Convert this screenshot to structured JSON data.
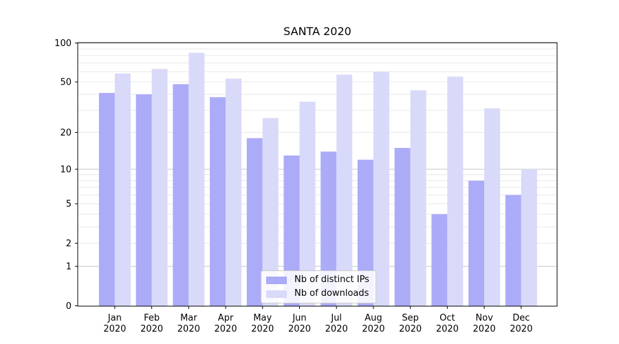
{
  "chart_data": {
    "type": "bar",
    "title": "SANTA 2020",
    "categories": [
      "Jan 2020",
      "Feb 2020",
      "Mar 2020",
      "Apr 2020",
      "May 2020",
      "Jun 2020",
      "Jul 2020",
      "Aug 2020",
      "Sep 2020",
      "Oct 2020",
      "Nov 2020",
      "Dec 2020"
    ],
    "x_months": [
      "Jan",
      "Feb",
      "Mar",
      "Apr",
      "May",
      "Jun",
      "Jul",
      "Aug",
      "Sep",
      "Oct",
      "Nov",
      "Dec"
    ],
    "x_year": "2020",
    "series": [
      {
        "name": "Nb of distinct IPs",
        "color": "#ababf8",
        "values": [
          41,
          40,
          48,
          38,
          18,
          13,
          14,
          12,
          15,
          4,
          8,
          6
        ]
      },
      {
        "name": "Nb of downloads",
        "color": "#d9d9f9",
        "values": [
          58,
          63,
          84,
          53,
          26,
          35,
          57,
          60,
          43,
          55,
          31,
          10
        ]
      }
    ],
    "yscale": "log1p",
    "ylim": [
      0,
      101
    ],
    "y_ticks": [
      0,
      1,
      2,
      5,
      10,
      20,
      50,
      100
    ],
    "y_major_gridlines": [
      1,
      10,
      100
    ],
    "y_minor_gridlines": [
      2,
      3,
      4,
      5,
      6,
      7,
      8,
      9,
      20,
      30,
      40,
      50,
      60,
      70,
      80,
      90
    ],
    "grid": true,
    "legend_position": "lower center",
    "colors": {
      "background": "#ffffff",
      "axis": "#000000",
      "tick_text": "#000000",
      "major_grid": "#c4c4c4",
      "minor_grid": "#e8e8ec"
    }
  }
}
